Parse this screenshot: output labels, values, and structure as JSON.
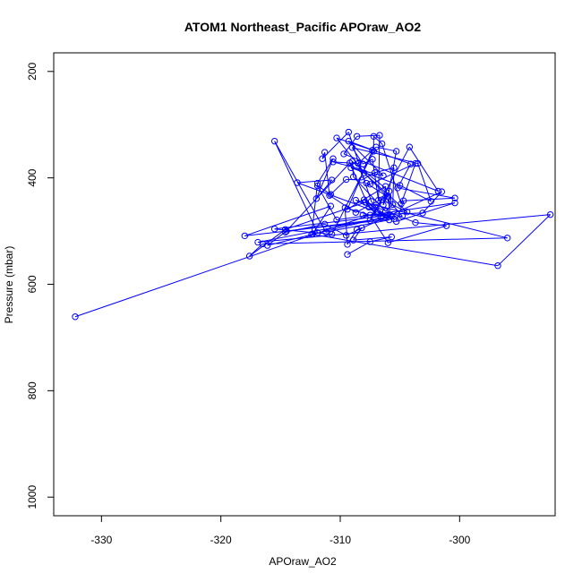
{
  "chart_data": {
    "type": "line",
    "title": "ATOM1 Northeast_Pacific APOraw_AO2",
    "xlabel": "APOraw_AO2",
    "ylabel": "Pressure (mbar)",
    "xlim": [
      -334,
      -292
    ],
    "ylim": [
      1035,
      165
    ],
    "y_inverted": true,
    "x_ticks": [
      -330,
      -320,
      -310,
      -300
    ],
    "y_ticks": [
      200,
      400,
      600,
      800,
      1000
    ],
    "grid": false,
    "markers": "open-circle",
    "color": "#0000ff",
    "series": [
      {
        "values": [
          [
            -332.2,
            661
          ],
          [
            -307.0,
            466
          ],
          [
            -307.9,
            446
          ],
          [
            -314.6,
            497
          ],
          [
            -317.6,
            547
          ],
          [
            -316.5,
            524
          ],
          [
            -296.0,
            513
          ],
          [
            -308.7,
            442
          ],
          [
            -305.5,
            477
          ],
          [
            -318.0,
            509
          ],
          [
            -310.8,
            453
          ],
          [
            -312.3,
            505
          ],
          [
            -311.9,
            503
          ],
          [
            -315.5,
            331
          ],
          [
            -311.2,
            502
          ],
          [
            -305.9,
            479
          ],
          [
            -308.0,
            441
          ],
          [
            -306.1,
            471
          ],
          [
            -313.6,
            409
          ],
          [
            -310.7,
            404
          ],
          [
            -312.0,
            439
          ],
          [
            -310.6,
            364
          ],
          [
            -311.9,
            410
          ],
          [
            -312.4,
            506
          ],
          [
            -296.8,
            565
          ],
          [
            -292.4,
            469
          ],
          [
            -316.9,
            521
          ],
          [
            -305.7,
            472
          ],
          [
            -308.1,
            470
          ],
          [
            -303.1,
            466
          ],
          [
            -301.5,
            426
          ],
          [
            -309.5,
            508
          ],
          [
            -311.3,
            487
          ],
          [
            -314.6,
            502
          ],
          [
            -309.2,
            372
          ],
          [
            -307.6,
            455
          ],
          [
            -306.6,
            475
          ],
          [
            -316.1,
            527
          ],
          [
            -314.5,
            500
          ],
          [
            -304.8,
            472
          ],
          [
            -306.0,
            441
          ],
          [
            -305.8,
            470
          ],
          [
            -315.5,
            496
          ],
          [
            -310.7,
            506
          ],
          [
            -307.2,
            350
          ],
          [
            -307.2,
            322
          ],
          [
            -306.5,
            336
          ],
          [
            -304.9,
            449
          ],
          [
            -303.7,
            373
          ],
          [
            -307.5,
            412
          ],
          [
            -307.8,
            410
          ],
          [
            -306.0,
            436
          ],
          [
            -308.0,
            391
          ],
          [
            -304.4,
            464
          ],
          [
            -306.5,
            441
          ],
          [
            -307.5,
            480
          ],
          [
            -304.2,
            342
          ],
          [
            -301.8,
            425
          ],
          [
            -309.7,
            355
          ],
          [
            -308.6,
            322
          ],
          [
            -306.7,
            320
          ],
          [
            -306.8,
            442
          ],
          [
            -307.3,
            365
          ],
          [
            -308.1,
            374
          ],
          [
            -309.0,
            343
          ],
          [
            -303.5,
            373
          ],
          [
            -302.4,
            444
          ],
          [
            -305.0,
            414
          ],
          [
            -309.1,
            381
          ],
          [
            -306.4,
            396
          ],
          [
            -309.3,
            331
          ],
          [
            -304.1,
            374
          ],
          [
            -305.2,
            419
          ],
          [
            -300.4,
            438
          ],
          [
            -304.7,
            443
          ],
          [
            -305.3,
            482
          ],
          [
            -300.4,
            447
          ],
          [
            -310.3,
            479
          ],
          [
            -311.9,
            415
          ],
          [
            -310.8,
            431
          ],
          [
            -309.5,
            403
          ],
          [
            -308.2,
            404
          ],
          [
            -307.1,
            390
          ],
          [
            -305.5,
            381
          ],
          [
            -305.6,
            450
          ],
          [
            -306.2,
            463
          ],
          [
            -308.9,
            398
          ],
          [
            -309.0,
            369
          ],
          [
            -305.9,
            425
          ],
          [
            -306.4,
            451
          ],
          [
            -306.2,
            416
          ],
          [
            -309.4,
            459
          ],
          [
            -307.3,
            348
          ],
          [
            -310.3,
            325
          ],
          [
            -308.2,
            384
          ],
          [
            -310.6,
            370
          ],
          [
            -308.5,
            373
          ],
          [
            -307.0,
            342
          ],
          [
            -305.3,
            350
          ],
          [
            -306.0,
            434
          ],
          [
            -308.7,
            465
          ],
          [
            -310.9,
            433
          ],
          [
            -311.3,
            352
          ],
          [
            -311.5,
            364
          ],
          [
            -309.3,
            314
          ],
          [
            -307.4,
            444
          ],
          [
            -307.0,
            455
          ],
          [
            -303.7,
            484
          ],
          [
            -301.1,
            490
          ],
          [
            -306.0,
            522
          ],
          [
            -307.5,
            470
          ],
          [
            -309.6,
            456
          ],
          [
            -309.4,
            525
          ],
          [
            -308.6,
            497
          ],
          [
            -308.2,
            494
          ],
          [
            -308.9,
            517
          ],
          [
            -305.7,
            511
          ],
          [
            -307.5,
            520
          ],
          [
            -309.4,
            544
          ]
        ]
      }
    ]
  }
}
